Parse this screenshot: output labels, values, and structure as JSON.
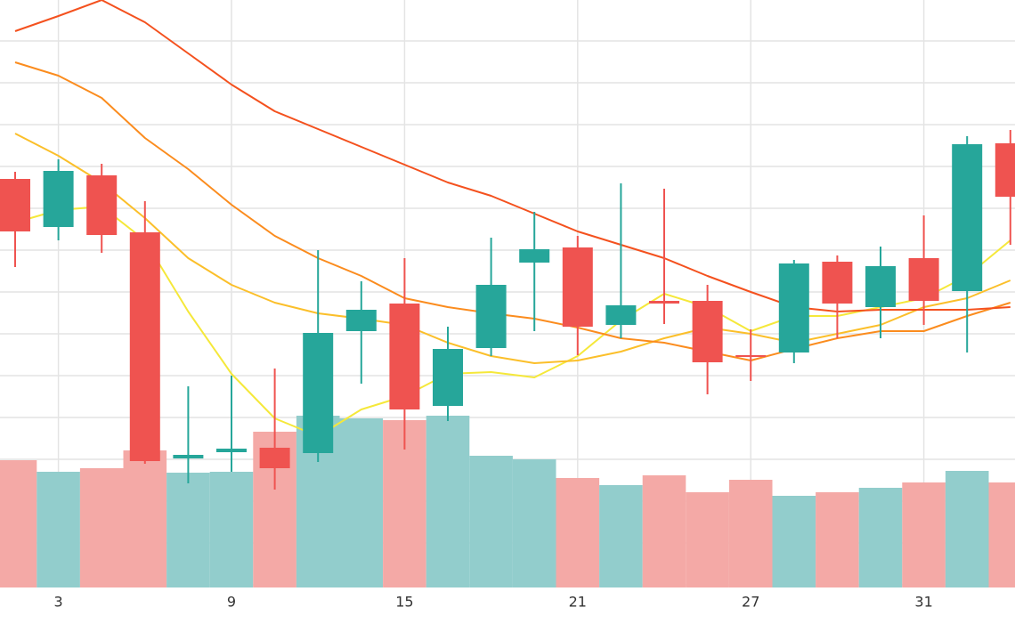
{
  "chart_data": {
    "type": "candlestick",
    "categories": [
      null,
      "3",
      null,
      null,
      null,
      "9",
      null,
      null,
      null,
      "15",
      null,
      null,
      null,
      "21",
      null,
      null,
      null,
      "27",
      null,
      null,
      null,
      "31",
      null,
      null
    ],
    "open": [
      459,
      405,
      463,
      399,
      145,
      152,
      157,
      151,
      288,
      319,
      204,
      269,
      365,
      382,
      295,
      322,
      322,
      261,
      264,
      366,
      315,
      370,
      333,
      499
    ],
    "high": [
      467,
      481,
      476,
      434,
      226,
      238,
      246,
      379,
      344,
      370,
      293,
      393,
      422,
      395,
      454,
      448,
      340,
      290,
      368,
      373,
      383,
      418,
      507,
      514
    ],
    "low": [
      360,
      390,
      376,
      139,
      117,
      130,
      110,
      141,
      229,
      155,
      187,
      260,
      288,
      261,
      280,
      296,
      217,
      232,
      252,
      280,
      280,
      295,
      264,
      385
    ],
    "close": [
      400,
      468,
      396,
      142,
      149,
      156,
      134,
      286,
      312,
      200,
      268,
      340,
      380,
      293,
      317,
      319,
      253,
      259,
      364,
      319,
      361,
      322,
      498,
      439
    ],
    "up_color": "#26a69a",
    "down_color": "#ef5350",
    "ylim": [
      0,
      660
    ],
    "grid": true,
    "volume": {
      "values": [
        143,
        130,
        134,
        154,
        129,
        130,
        175,
        193,
        190,
        188,
        193,
        148,
        144,
        123,
        115,
        126,
        107,
        121,
        103,
        107,
        112,
        118,
        131,
        118
      ],
      "up_color": "#92cdcc",
      "down_color": "#f4a9a6",
      "ylim": [
        0,
        660
      ]
    },
    "series": [
      {
        "color": "#f5e83a",
        "values": [
          410,
          424,
          428,
          390,
          310,
          240,
          190,
          170,
          200,
          215,
          240,
          242,
          236,
          260,
          300,
          330,
          315,
          288,
          305,
          305,
          315,
          325,
          350,
          390
        ]
      },
      {
        "color": "#fbbf2a",
        "values": [
          510,
          485,
          455,
          415,
          370,
          340,
          320,
          308,
          302,
          295,
          275,
          260,
          252,
          255,
          265,
          280,
          292,
          285,
          275,
          285,
          295,
          315,
          325,
          345
        ]
      },
      {
        "color": "#fb8c1e",
        "values": [
          590,
          575,
          550,
          505,
          470,
          430,
          395,
          370,
          350,
          325,
          315,
          308,
          302,
          292,
          280,
          275,
          265,
          255,
          268,
          280,
          288,
          288,
          305,
          320
        ]
      },
      {
        "color": "#f4511e",
        "values": [
          625,
          642,
          660,
          635,
          600,
          565,
          535,
          515,
          495,
          475,
          455,
          440,
          420,
          400,
          385,
          370,
          350,
          332,
          315,
          310,
          312,
          312,
          312,
          315
        ]
      }
    ]
  }
}
